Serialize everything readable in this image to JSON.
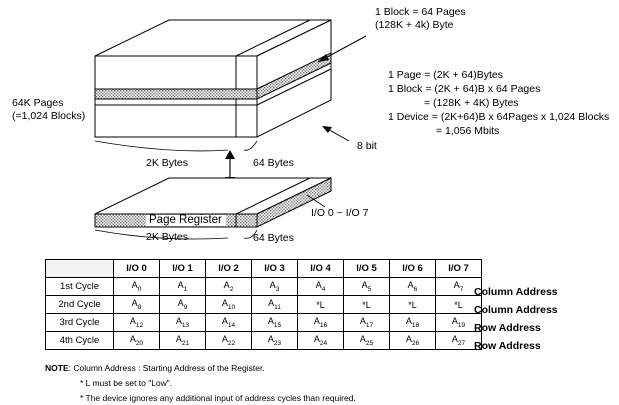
{
  "block_info": {
    "line1": "1 Block = 64 Pages",
    "line2": "(128K + 4k) Byte"
  },
  "left_label": {
    "line1": "64K Pages",
    "line2": "(=1,024 Blocks)"
  },
  "formulas": [
    "1 Page = (2K + 64)Bytes",
    "1 Block = (2K + 64)B x 64 Pages",
    "= (128K + 4K) Bytes",
    "1 Device = (2K+64)B x 64Pages x 1,024 Blocks",
    "= 1,056 Mbits"
  ],
  "labels": {
    "bytes_2k": "2K Bytes",
    "bytes_64": "64 Bytes",
    "bit8": "8 bit",
    "page_register": "Page Register",
    "io_range": "I/O 0 ~ I/O 7"
  },
  "table": {
    "headers": [
      "I/O 0",
      "I/O 1",
      "I/O 2",
      "I/O 3",
      "I/O 4",
      "I/O 5",
      "I/O 6",
      "I/O 7"
    ],
    "rows": [
      {
        "cycle": "1st Cycle",
        "cells": [
          [
            "A",
            "0"
          ],
          [
            "A",
            "1"
          ],
          [
            "A",
            "2"
          ],
          [
            "A",
            "3"
          ],
          [
            "A",
            "4"
          ],
          [
            "A",
            "5"
          ],
          [
            "A",
            "6"
          ],
          [
            "A",
            "7"
          ]
        ],
        "label": "Column Address"
      },
      {
        "cycle": "2nd Cycle",
        "cells": [
          [
            "A",
            "8"
          ],
          [
            "A",
            "9"
          ],
          [
            "A",
            "10"
          ],
          [
            "A",
            "11"
          ],
          [
            "*L",
            ""
          ],
          [
            "*L",
            ""
          ],
          [
            "*L",
            ""
          ],
          [
            "*L",
            ""
          ]
        ],
        "label": "Column Address"
      },
      {
        "cycle": "3rd Cycle",
        "cells": [
          [
            "A",
            "12"
          ],
          [
            "A",
            "13"
          ],
          [
            "A",
            "14"
          ],
          [
            "A",
            "15"
          ],
          [
            "A",
            "16"
          ],
          [
            "A",
            "17"
          ],
          [
            "A",
            "18"
          ],
          [
            "A",
            "19"
          ]
        ],
        "label": "Row Address"
      },
      {
        "cycle": "4th Cycle",
        "cells": [
          [
            "A",
            "20"
          ],
          [
            "A",
            "21"
          ],
          [
            "A",
            "22"
          ],
          [
            "A",
            "23"
          ],
          [
            "A",
            "24"
          ],
          [
            "A",
            "25"
          ],
          [
            "A",
            "26"
          ],
          [
            "A",
            "27"
          ]
        ],
        "label": "Row Address"
      }
    ]
  },
  "notes": {
    "title": "NOTE",
    "main": ": Column Address : Starting Address of the Register.",
    "items": [
      "* L must be set to \"Low\".",
      "* The device ignores any additional input of address cycles than required."
    ]
  },
  "colors": {
    "line": "#000000",
    "face": "#ffffff",
    "hatch": "#808080"
  }
}
